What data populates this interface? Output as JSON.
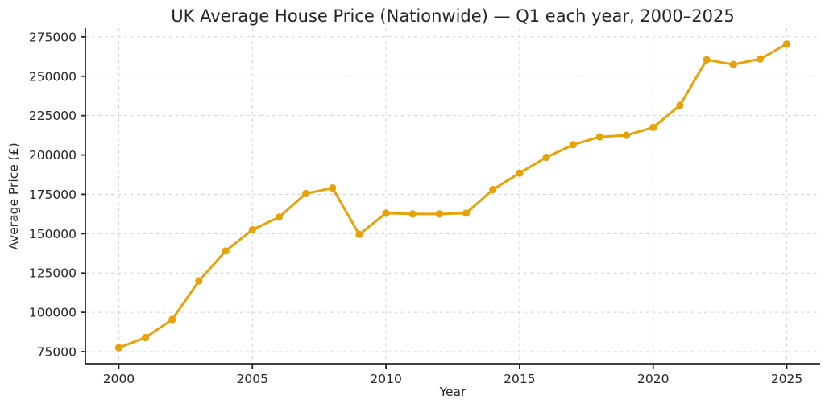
{
  "chart_data": {
    "type": "line",
    "title": "UK Average House Price (Nationwide) — Q1 each year, 2000–2025",
    "xlabel": "Year",
    "ylabel": "Average Price (£)",
    "x": [
      2000,
      2001,
      2002,
      2003,
      2004,
      2005,
      2006,
      2007,
      2008,
      2009,
      2010,
      2011,
      2012,
      2013,
      2014,
      2015,
      2016,
      2017,
      2018,
      2019,
      2020,
      2021,
      2022,
      2023,
      2024,
      2025
    ],
    "values": [
      77500,
      84000,
      95500,
      120000,
      139000,
      152500,
      160500,
      175500,
      179000,
      149500,
      163000,
      162500,
      162500,
      163000,
      178000,
      188500,
      198500,
      206500,
      211500,
      212500,
      217500,
      231500,
      260500,
      257500,
      261000,
      270500
    ],
    "xticks": [
      2000,
      2005,
      2010,
      2015,
      2020,
      2025
    ],
    "yticks": [
      75000,
      100000,
      125000,
      150000,
      175000,
      200000,
      225000,
      250000,
      275000
    ],
    "xlim": [
      1998.75,
      2026.25
    ],
    "ylim": [
      67350,
      280560
    ],
    "grid": true,
    "grid_style": "dashed",
    "legend": "none",
    "marker": "circle",
    "colors": {
      "line": "#E6A208",
      "marker": "#E6A208",
      "axis": "#262626",
      "grid": "#CFCFCF",
      "background": "#FFFFFF"
    }
  }
}
